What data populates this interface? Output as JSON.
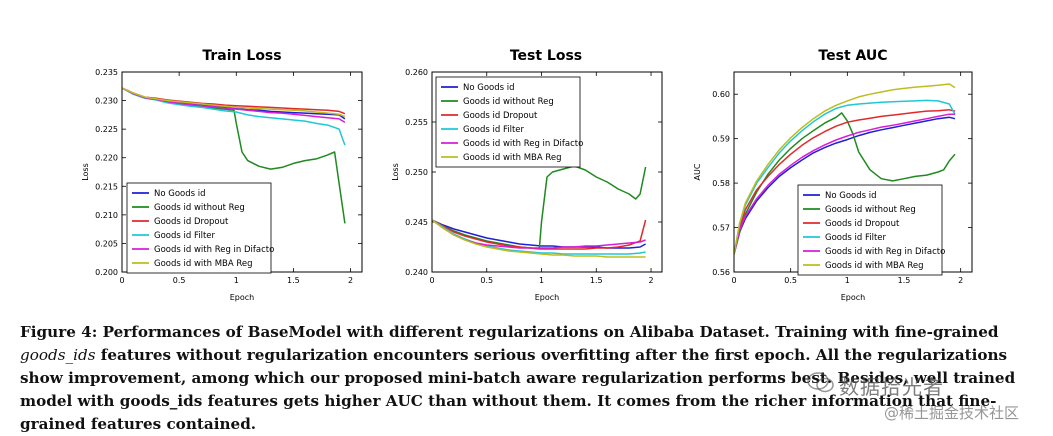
{
  "chart_data": [
    {
      "type": "line",
      "title": "Train Loss",
      "xlabel": "Epoch",
      "ylabel": "Loss",
      "xlim": [
        0,
        2.1
      ],
      "ylim": [
        0.2,
        0.235
      ],
      "xticks": [
        0,
        0.5,
        1,
        1.5,
        2
      ],
      "xtick_labels": [
        "0",
        "0.5",
        "1",
        "1.5",
        "2"
      ],
      "yticks": [
        0.2,
        0.205,
        0.21,
        0.215,
        0.22,
        0.225,
        0.23,
        0.235
      ],
      "ytick_labels": [
        "0.200",
        "0.205",
        "0.210",
        "0.215",
        "0.220",
        "0.225",
        "0.230",
        "0.235"
      ],
      "legend_position": "lower-left",
      "series": [
        {
          "name": "No Goods id",
          "color": "#1f1fd6",
          "x": [
            0,
            0.1,
            0.2,
            0.3,
            0.4,
            0.5,
            0.6,
            0.7,
            0.8,
            0.9,
            1.0,
            1.1,
            1.2,
            1.3,
            1.4,
            1.5,
            1.6,
            1.7,
            1.8,
            1.9,
            1.95
          ],
          "y": [
            0.2322,
            0.2312,
            0.2305,
            0.2303,
            0.2298,
            0.2296,
            0.2294,
            0.2292,
            0.229,
            0.2288,
            0.2286,
            0.2284,
            0.2283,
            0.2281,
            0.228,
            0.2279,
            0.2278,
            0.2277,
            0.2276,
            0.2275,
            0.2268
          ]
        },
        {
          "name": "Goods id without Reg",
          "color": "#1f8a1f",
          "x": [
            0,
            0.1,
            0.2,
            0.3,
            0.4,
            0.5,
            0.6,
            0.7,
            0.8,
            0.9,
            0.98,
            1.0,
            1.05,
            1.1,
            1.2,
            1.3,
            1.4,
            1.5,
            1.6,
            1.7,
            1.8,
            1.86,
            1.9,
            1.95
          ],
          "y": [
            0.2322,
            0.2312,
            0.2305,
            0.2302,
            0.2297,
            0.2295,
            0.2292,
            0.229,
            0.2287,
            0.2285,
            0.2283,
            0.226,
            0.221,
            0.2195,
            0.2185,
            0.218,
            0.2183,
            0.219,
            0.2195,
            0.2198,
            0.2205,
            0.221,
            0.2155,
            0.2085
          ]
        },
        {
          "name": "Goods id Dropout",
          "color": "#e02a2a",
          "x": [
            0,
            0.1,
            0.2,
            0.3,
            0.4,
            0.5,
            0.6,
            0.7,
            0.8,
            0.9,
            1.0,
            1.1,
            1.2,
            1.3,
            1.4,
            1.5,
            1.6,
            1.7,
            1.8,
            1.9,
            1.95
          ],
          "y": [
            0.2322,
            0.2313,
            0.2306,
            0.2304,
            0.2301,
            0.2299,
            0.2297,
            0.2295,
            0.2294,
            0.2292,
            0.2291,
            0.229,
            0.2289,
            0.2288,
            0.2287,
            0.2286,
            0.2285,
            0.2284,
            0.2283,
            0.2281,
            0.2277
          ]
        },
        {
          "name": "Goods id Filter",
          "color": "#1fc8d6",
          "x": [
            0,
            0.1,
            0.2,
            0.3,
            0.4,
            0.5,
            0.6,
            0.7,
            0.8,
            0.9,
            1.0,
            1.1,
            1.2,
            1.3,
            1.4,
            1.5,
            1.6,
            1.7,
            1.8,
            1.9,
            1.95
          ],
          "y": [
            0.2322,
            0.2311,
            0.2304,
            0.2301,
            0.2296,
            0.2293,
            0.229,
            0.2288,
            0.2285,
            0.2282,
            0.228,
            0.2275,
            0.2272,
            0.227,
            0.2268,
            0.2266,
            0.2264,
            0.226,
            0.2257,
            0.225,
            0.2222
          ]
        },
        {
          "name": "Goods id with Reg in Difacto",
          "color": "#d61fd6",
          "x": [
            0,
            0.1,
            0.2,
            0.3,
            0.4,
            0.5,
            0.6,
            0.7,
            0.8,
            0.9,
            1.0,
            1.1,
            1.2,
            1.3,
            1.4,
            1.5,
            1.6,
            1.7,
            1.8,
            1.9,
            1.95
          ],
          "y": [
            0.2322,
            0.2312,
            0.2305,
            0.2302,
            0.2298,
            0.2295,
            0.2293,
            0.2291,
            0.2289,
            0.2287,
            0.2285,
            0.2283,
            0.2281,
            0.2279,
            0.2278,
            0.2276,
            0.2274,
            0.2272,
            0.227,
            0.2268,
            0.2262
          ]
        },
        {
          "name": "Goods id with MBA Reg",
          "color": "#bdbd1f",
          "x": [
            0,
            0.1,
            0.2,
            0.3,
            0.4,
            0.5,
            0.6,
            0.7,
            0.8,
            0.9,
            1.0,
            1.1,
            1.2,
            1.3,
            1.4,
            1.5,
            1.6,
            1.7,
            1.8,
            1.9,
            1.95
          ],
          "y": [
            0.2322,
            0.2313,
            0.2306,
            0.2303,
            0.23,
            0.2298,
            0.2296,
            0.2294,
            0.2292,
            0.229,
            0.2288,
            0.2287,
            0.2286,
            0.2285,
            0.2284,
            0.2283,
            0.2282,
            0.228,
            0.2278,
            0.2276,
            0.2272
          ]
        }
      ]
    },
    {
      "type": "line",
      "title": "Test Loss",
      "xlabel": "Epoch",
      "ylabel": "Loss",
      "xlim": [
        0,
        2.1
      ],
      "ylim": [
        0.24,
        0.26
      ],
      "xticks": [
        0,
        0.5,
        1,
        1.5,
        2
      ],
      "xtick_labels": [
        "0",
        "0.5",
        "1",
        "1.5",
        "2"
      ],
      "yticks": [
        0.24,
        0.245,
        0.25,
        0.255,
        0.26
      ],
      "ytick_labels": [
        "0.240",
        "0.245",
        "0.250",
        "0.255",
        "0.260"
      ],
      "legend_position": "top-left",
      "series": [
        {
          "name": "No Goods id",
          "color": "#1f1fd6",
          "x": [
            0,
            0.1,
            0.2,
            0.3,
            0.4,
            0.5,
            0.6,
            0.7,
            0.8,
            0.9,
            1.0,
            1.1,
            1.2,
            1.3,
            1.4,
            1.5,
            1.6,
            1.7,
            1.8,
            1.9,
            1.95
          ],
          "y": [
            0.2452,
            0.2447,
            0.2443,
            0.244,
            0.2437,
            0.2434,
            0.2432,
            0.243,
            0.2428,
            0.2427,
            0.2426,
            0.2426,
            0.2425,
            0.2425,
            0.2425,
            0.2425,
            0.2424,
            0.2424,
            0.2424,
            0.2425,
            0.2428
          ]
        },
        {
          "name": "Goods id without Reg",
          "color": "#1f8a1f",
          "x": [
            0,
            0.1,
            0.2,
            0.3,
            0.4,
            0.5,
            0.6,
            0.7,
            0.8,
            0.9,
            0.98,
            1.0,
            1.05,
            1.1,
            1.2,
            1.3,
            1.4,
            1.5,
            1.6,
            1.7,
            1.8,
            1.86,
            1.9,
            1.95
          ],
          "y": [
            0.2452,
            0.2446,
            0.2441,
            0.2437,
            0.2434,
            0.2431,
            0.2429,
            0.2427,
            0.2425,
            0.2424,
            0.2423,
            0.245,
            0.2495,
            0.25,
            0.2503,
            0.2506,
            0.2502,
            0.2495,
            0.249,
            0.2483,
            0.2478,
            0.2473,
            0.2478,
            0.2505
          ]
        },
        {
          "name": "Goods id Dropout",
          "color": "#e02a2a",
          "x": [
            0,
            0.1,
            0.2,
            0.3,
            0.4,
            0.5,
            0.6,
            0.7,
            0.8,
            0.9,
            1.0,
            1.1,
            1.2,
            1.3,
            1.4,
            1.5,
            1.6,
            1.7,
            1.8,
            1.9,
            1.95
          ],
          "y": [
            0.2452,
            0.2446,
            0.244,
            0.2436,
            0.2433,
            0.243,
            0.2428,
            0.2426,
            0.2425,
            0.2424,
            0.2423,
            0.2423,
            0.2423,
            0.2423,
            0.2423,
            0.2424,
            0.2424,
            0.2425,
            0.2427,
            0.2431,
            0.2452
          ]
        },
        {
          "name": "Goods id Filter",
          "color": "#1fc8d6",
          "x": [
            0,
            0.1,
            0.2,
            0.3,
            0.4,
            0.5,
            0.6,
            0.7,
            0.8,
            0.9,
            1.0,
            1.1,
            1.2,
            1.3,
            1.4,
            1.5,
            1.6,
            1.7,
            1.8,
            1.9,
            1.95
          ],
          "y": [
            0.2452,
            0.2445,
            0.2438,
            0.2433,
            0.2429,
            0.2426,
            0.2424,
            0.2422,
            0.2421,
            0.242,
            0.2419,
            0.2419,
            0.2418,
            0.2418,
            0.2418,
            0.2418,
            0.2418,
            0.2418,
            0.2418,
            0.2419,
            0.242
          ]
        },
        {
          "name": "Goods id with Reg in Difacto",
          "color": "#d61fd6",
          "x": [
            0,
            0.1,
            0.2,
            0.3,
            0.4,
            0.5,
            0.6,
            0.7,
            0.8,
            0.9,
            1.0,
            1.1,
            1.2,
            1.3,
            1.4,
            1.5,
            1.6,
            1.7,
            1.8,
            1.9,
            1.95
          ],
          "y": [
            0.2452,
            0.2444,
            0.2437,
            0.2432,
            0.2429,
            0.2427,
            0.2426,
            0.2425,
            0.2424,
            0.2424,
            0.2424,
            0.2424,
            0.2425,
            0.2425,
            0.2426,
            0.2426,
            0.2427,
            0.2428,
            0.2429,
            0.243,
            0.2432
          ]
        },
        {
          "name": "Goods id with MBA Reg",
          "color": "#bdbd1f",
          "x": [
            0,
            0.1,
            0.2,
            0.3,
            0.4,
            0.5,
            0.6,
            0.7,
            0.8,
            0.9,
            1.0,
            1.1,
            1.2,
            1.3,
            1.4,
            1.5,
            1.6,
            1.7,
            1.8,
            1.9,
            1.95
          ],
          "y": [
            0.2452,
            0.2444,
            0.2437,
            0.2432,
            0.2428,
            0.2425,
            0.2423,
            0.2421,
            0.242,
            0.2419,
            0.2418,
            0.2417,
            0.2417,
            0.2416,
            0.2416,
            0.2416,
            0.2415,
            0.2415,
            0.2415,
            0.2415,
            0.2415
          ]
        }
      ]
    },
    {
      "type": "line",
      "title": "Test   AUC",
      "xlabel": "Epoch",
      "ylabel": "AUC",
      "xlim": [
        0,
        2.1
      ],
      "ylim": [
        0.56,
        0.605
      ],
      "xticks": [
        0,
        0.5,
        1,
        1.5,
        2
      ],
      "xtick_labels": [
        "0",
        "0.5",
        "1",
        "1.5",
        "2"
      ],
      "yticks": [
        0.56,
        0.57,
        0.58,
        0.59,
        0.6
      ],
      "ytick_labels": [
        "0.56",
        "0.57",
        "0.58",
        "0.59",
        "0.60"
      ],
      "legend_position": "lower-right",
      "series": [
        {
          "name": "No Goods id",
          "color": "#1f1fd6",
          "x": [
            0,
            0.05,
            0.1,
            0.2,
            0.3,
            0.4,
            0.5,
            0.6,
            0.7,
            0.8,
            0.9,
            1.0,
            1.1,
            1.2,
            1.3,
            1.4,
            1.5,
            1.6,
            1.7,
            1.8,
            1.9,
            1.95
          ],
          "y": [
            0.564,
            0.569,
            0.572,
            0.576,
            0.579,
            0.5815,
            0.5835,
            0.5852,
            0.5868,
            0.588,
            0.589,
            0.5898,
            0.5907,
            0.5914,
            0.592,
            0.5925,
            0.593,
            0.5935,
            0.594,
            0.5945,
            0.5948,
            0.5945
          ]
        },
        {
          "name": "Goods id without Reg",
          "color": "#1f8a1f",
          "x": [
            0,
            0.05,
            0.1,
            0.2,
            0.3,
            0.4,
            0.5,
            0.6,
            0.7,
            0.8,
            0.9,
            0.95,
            1.0,
            1.05,
            1.1,
            1.2,
            1.3,
            1.4,
            1.5,
            1.6,
            1.7,
            1.8,
            1.85,
            1.9,
            1.95
          ],
          "y": [
            0.564,
            0.569,
            0.573,
            0.578,
            0.582,
            0.5852,
            0.5878,
            0.59,
            0.5918,
            0.5935,
            0.5948,
            0.5958,
            0.594,
            0.591,
            0.587,
            0.583,
            0.581,
            0.5805,
            0.581,
            0.5815,
            0.5818,
            0.5825,
            0.583,
            0.585,
            0.5865
          ]
        },
        {
          "name": "Goods id Dropout",
          "color": "#e02a2a",
          "x": [
            0,
            0.05,
            0.1,
            0.2,
            0.3,
            0.4,
            0.5,
            0.6,
            0.7,
            0.8,
            0.9,
            1.0,
            1.1,
            1.2,
            1.3,
            1.4,
            1.5,
            1.6,
            1.7,
            1.8,
            1.9,
            1.95
          ],
          "y": [
            0.564,
            0.57,
            0.574,
            0.5785,
            0.5815,
            0.5842,
            0.5865,
            0.5885,
            0.5902,
            0.5916,
            0.5928,
            0.5937,
            0.5942,
            0.5946,
            0.595,
            0.5953,
            0.5956,
            0.5959,
            0.5962,
            0.5963,
            0.5965,
            0.5962
          ]
        },
        {
          "name": "Goods id Filter",
          "color": "#1fc8d6",
          "x": [
            0,
            0.05,
            0.1,
            0.2,
            0.3,
            0.4,
            0.5,
            0.6,
            0.7,
            0.8,
            0.9,
            1.0,
            1.1,
            1.2,
            1.3,
            1.4,
            1.5,
            1.6,
            1.7,
            1.8,
            1.9,
            1.95
          ],
          "y": [
            0.564,
            0.571,
            0.575,
            0.58,
            0.5835,
            0.5868,
            0.5895,
            0.5918,
            0.5938,
            0.5955,
            0.5968,
            0.5975,
            0.5978,
            0.598,
            0.5982,
            0.5983,
            0.5984,
            0.5985,
            0.5986,
            0.5985,
            0.5978,
            0.5955
          ]
        },
        {
          "name": "Goods id with Reg in Difacto",
          "color": "#d61fd6",
          "x": [
            0,
            0.05,
            0.1,
            0.2,
            0.3,
            0.4,
            0.5,
            0.6,
            0.7,
            0.8,
            0.9,
            1.0,
            1.1,
            1.2,
            1.3,
            1.4,
            1.5,
            1.6,
            1.7,
            1.8,
            1.9,
            1.95
          ],
          "y": [
            0.564,
            0.5695,
            0.5725,
            0.5765,
            0.5795,
            0.582,
            0.584,
            0.5858,
            0.5873,
            0.5886,
            0.5897,
            0.5906,
            0.5914,
            0.592,
            0.5926,
            0.593,
            0.5935,
            0.594,
            0.5945,
            0.595,
            0.5955,
            0.5955
          ]
        },
        {
          "name": "Goods id with MBA Reg",
          "color": "#bdbd1f",
          "x": [
            0,
            0.05,
            0.1,
            0.2,
            0.3,
            0.4,
            0.5,
            0.6,
            0.7,
            0.8,
            0.9,
            1.0,
            1.1,
            1.2,
            1.3,
            1.4,
            1.5,
            1.6,
            1.7,
            1.8,
            1.9,
            1.95
          ],
          "y": [
            0.564,
            0.571,
            0.5755,
            0.5805,
            0.5842,
            0.5875,
            0.5902,
            0.5925,
            0.5945,
            0.5962,
            0.5975,
            0.5985,
            0.5994,
            0.6,
            0.6005,
            0.601,
            0.6013,
            0.6016,
            0.6018,
            0.602,
            0.6023,
            0.6015
          ]
        }
      ]
    }
  ],
  "caption": {
    "part1": "Figure 4: Performances of BaseModel with different regularizations on Alibaba Dataset. Training with fine-grained ",
    "italic": "goods_ids",
    "part2": " features without regularization encounters serious overfitting after the first epoch. All the regularizations show improvement, among which our proposed mini-batch aware regularization performs best. Besides, well trained model with goods_ids features gets higher AUC than without them. It comes from the richer information that fine-grained features contained."
  },
  "watermark": {
    "line1": "数据拾光者",
    "line2": "@稀土掘金技术社区"
  }
}
